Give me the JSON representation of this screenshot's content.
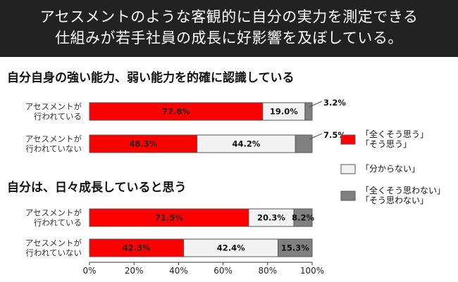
{
  "header": {
    "line1": "アセスメントのような客観的に自分の実力を測定できる",
    "line2": "仕組みが若手社員の成長に好影響を及ぼしている。"
  },
  "colors": {
    "header_bg": "#222222",
    "red": "#ff0000",
    "light": "#f2f2f2",
    "gray": "#808080",
    "border": "#555555"
  },
  "legend": [
    {
      "lines": [
        "「全くそう思う」",
        "「そう思う」"
      ],
      "color": "#ff0000"
    },
    {
      "lines": [
        "「分からない」"
      ],
      "color": "#f2f2f2"
    },
    {
      "lines": [
        "「全くそう思わない」",
        "「そう思わない」"
      ],
      "color": "#808080"
    }
  ],
  "chart_data": [
    {
      "type": "bar",
      "stacked": true,
      "orientation": "horizontal",
      "title": "自分自身の強い能力、弱い能力を的確に認識している",
      "categories": [
        [
          "アセスメントが",
          "行われている"
        ],
        [
          "アセスメントが",
          "行われていない"
        ]
      ],
      "series": [
        {
          "name": "「全くそう思う」「そう思う」",
          "values": [
            77.8,
            48.3
          ],
          "labels": [
            "77.8%",
            "48.3%"
          ]
        },
        {
          "name": "「分からない」",
          "values": [
            19.0,
            44.2
          ],
          "labels": [
            "19.0%",
            "44.2%"
          ]
        },
        {
          "name": "「全くそう思わない」「そう思わない」",
          "values": [
            3.2,
            7.5
          ],
          "labels": [
            "3.2%",
            "7.5%"
          ]
        }
      ],
      "xlim": [
        0,
        100
      ]
    },
    {
      "type": "bar",
      "stacked": true,
      "orientation": "horizontal",
      "title": "自分は、日々成長していると思う",
      "categories": [
        [
          "アセスメントが",
          "行われている"
        ],
        [
          "アセスメントが",
          "行われていない"
        ]
      ],
      "series": [
        {
          "name": "「全くそう思う」「そう思う」",
          "values": [
            71.5,
            42.3
          ],
          "labels": [
            "71.5%",
            "42.3%"
          ]
        },
        {
          "name": "「分からない」",
          "values": [
            20.3,
            42.4
          ],
          "labels": [
            "20.3%",
            "42.4%"
          ]
        },
        {
          "name": "「全くそう思わない」「そう思わない」",
          "values": [
            8.2,
            15.3
          ],
          "labels": [
            "8.2%",
            "15.3%"
          ]
        }
      ],
      "xlim": [
        0,
        100
      ],
      "xticks": [
        "0%",
        "20%",
        "40%",
        "60%",
        "80%",
        "100%"
      ]
    }
  ]
}
